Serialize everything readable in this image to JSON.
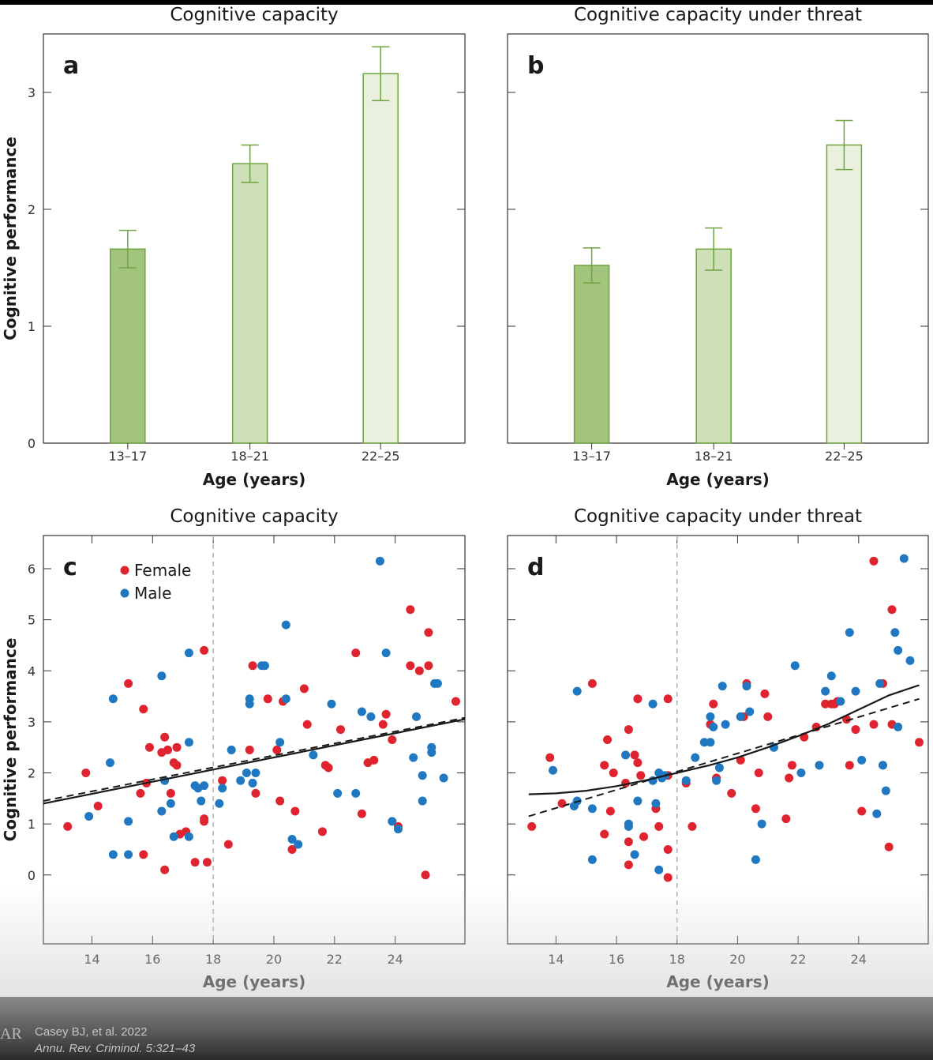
{
  "footer": {
    "logo": "AR",
    "citation_line1": "Casey BJ, et al. 2022",
    "citation_line2": "Annu. Rev. Criminol. 5:321–43"
  },
  "colors": {
    "bar_dark": "#a2c47c",
    "bar_mid": "#cfe0b8",
    "bar_light": "#e9f1de",
    "bar_edge": "#6fa33f",
    "female": "#e0242f",
    "male": "#1f78c1",
    "fit": "#1a1a1a",
    "divider": "#a6a6a6"
  },
  "chart_data": [
    {
      "type": "bar",
      "panel": "a",
      "title": "Cognitive capacity",
      "xlabel": "Age (years)",
      "ylabel": "Cognitive performance",
      "categories": [
        "13–17",
        "18–21",
        "22–25"
      ],
      "values": [
        1.66,
        2.39,
        3.16
      ],
      "errors": [
        0.16,
        0.16,
        0.23
      ],
      "ylim": [
        0,
        3.5
      ],
      "yticks": [
        0,
        1,
        2,
        3
      ],
      "ytick_labels": [
        "0",
        "1",
        "2",
        "3"
      ]
    },
    {
      "type": "bar",
      "panel": "b",
      "title": "Cognitive capacity under threat",
      "xlabel": "Age (years)",
      "ylabel": "",
      "categories": [
        "13–17",
        "18–21",
        "22–25"
      ],
      "values": [
        1.52,
        1.66,
        2.55
      ],
      "errors": [
        0.15,
        0.18,
        0.21
      ],
      "ylim": [
        0,
        3.5
      ],
      "yticks": [
        0,
        1,
        2,
        3
      ],
      "ytick_labels": [
        "",
        "",
        "",
        ""
      ]
    },
    {
      "type": "scatter",
      "panel": "c",
      "title": "Cognitive capacity",
      "xlabel": "Age (years)",
      "ylabel": "Cognitive performance",
      "xlim": [
        12.4,
        26.3
      ],
      "ylim": [
        -1.35,
        6.65
      ],
      "xticks": [
        14,
        16,
        18,
        20,
        22,
        24
      ],
      "xtick_labels": [
        "14",
        "16",
        "18",
        "20",
        "22",
        "24"
      ],
      "yticks": [
        0,
        1,
        2,
        3,
        4,
        5,
        6
      ],
      "ytick_labels": [
        "0",
        "1",
        "2",
        "3",
        "4",
        "5",
        "6"
      ],
      "divider_x": 18,
      "legend": {
        "position": "top-left",
        "entries": [
          "Female",
          "Male"
        ]
      },
      "fit_solid": {
        "x": [
          12.4,
          26.3
        ],
        "y": [
          1.4,
          3.05
        ]
      },
      "fit_dashed": {
        "x": [
          12.4,
          26.3
        ],
        "y": [
          1.45,
          3.08
        ]
      },
      "series": [
        {
          "name": "Female",
          "points": [
            [
              13.2,
              0.95
            ],
            [
              13.8,
              2.0
            ],
            [
              14.2,
              1.35
            ],
            [
              15.2,
              3.75
            ],
            [
              15.6,
              1.6
            ],
            [
              15.7,
              3.25
            ],
            [
              15.7,
              0.4
            ],
            [
              15.8,
              1.8
            ],
            [
              15.9,
              2.5
            ],
            [
              16.3,
              2.4
            ],
            [
              16.4,
              2.7
            ],
            [
              16.4,
              0.1
            ],
            [
              16.5,
              2.45
            ],
            [
              16.6,
              1.6
            ],
            [
              16.7,
              2.2
            ],
            [
              16.8,
              2.15
            ],
            [
              16.8,
              2.5
            ],
            [
              16.9,
              0.8
            ],
            [
              17.1,
              0.85
            ],
            [
              17.4,
              0.25
            ],
            [
              17.7,
              4.4
            ],
            [
              17.7,
              1.1
            ],
            [
              17.7,
              1.05
            ],
            [
              17.8,
              0.25
            ],
            [
              18.3,
              1.85
            ],
            [
              18.5,
              0.6
            ],
            [
              19.2,
              2.45
            ],
            [
              19.3,
              4.1
            ],
            [
              19.4,
              1.6
            ],
            [
              19.8,
              3.45
            ],
            [
              20.1,
              2.45
            ],
            [
              20.2,
              1.45
            ],
            [
              20.3,
              3.4
            ],
            [
              20.6,
              0.5
            ],
            [
              20.7,
              1.25
            ],
            [
              21.0,
              3.65
            ],
            [
              21.1,
              2.95
            ],
            [
              21.6,
              0.85
            ],
            [
              21.7,
              2.15
            ],
            [
              21.8,
              2.1
            ],
            [
              22.2,
              2.85
            ],
            [
              22.7,
              4.35
            ],
            [
              22.9,
              1.2
            ],
            [
              23.1,
              2.2
            ],
            [
              23.3,
              2.25
            ],
            [
              23.6,
              2.95
            ],
            [
              23.7,
              3.15
            ],
            [
              23.9,
              2.65
            ],
            [
              24.1,
              0.95
            ],
            [
              24.5,
              4.1
            ],
            [
              24.5,
              5.2
            ],
            [
              24.8,
              4.0
            ],
            [
              25.0,
              0.0
            ],
            [
              25.1,
              4.1
            ],
            [
              25.1,
              4.75
            ],
            [
              26.0,
              3.4
            ]
          ]
        },
        {
          "name": "Male",
          "points": [
            [
              13.9,
              1.15
            ],
            [
              14.6,
              2.2
            ],
            [
              14.7,
              3.45
            ],
            [
              14.7,
              0.4
            ],
            [
              15.2,
              1.05
            ],
            [
              15.2,
              0.4
            ],
            [
              16.3,
              3.9
            ],
            [
              16.3,
              1.25
            ],
            [
              16.4,
              1.85
            ],
            [
              16.6,
              1.4
            ],
            [
              16.7,
              0.75
            ],
            [
              17.2,
              2.6
            ],
            [
              17.2,
              4.35
            ],
            [
              17.2,
              0.75
            ],
            [
              17.4,
              1.75
            ],
            [
              17.5,
              1.7
            ],
            [
              17.6,
              1.45
            ],
            [
              17.7,
              1.75
            ],
            [
              18.2,
              1.4
            ],
            [
              18.3,
              1.7
            ],
            [
              18.6,
              2.45
            ],
            [
              18.9,
              1.85
            ],
            [
              19.1,
              2.0
            ],
            [
              19.2,
              3.45
            ],
            [
              19.2,
              3.35
            ],
            [
              19.3,
              1.8
            ],
            [
              19.4,
              2.0
            ],
            [
              19.6,
              4.1
            ],
            [
              19.7,
              4.1
            ],
            [
              20.2,
              2.6
            ],
            [
              20.4,
              3.45
            ],
            [
              20.4,
              4.9
            ],
            [
              20.6,
              0.7
            ],
            [
              20.8,
              0.6
            ],
            [
              21.3,
              2.35
            ],
            [
              21.9,
              3.35
            ],
            [
              22.1,
              1.6
            ],
            [
              22.7,
              1.6
            ],
            [
              22.9,
              3.2
            ],
            [
              23.2,
              3.1
            ],
            [
              23.5,
              6.15
            ],
            [
              23.7,
              4.35
            ],
            [
              23.9,
              1.05
            ],
            [
              24.1,
              0.9
            ],
            [
              24.6,
              2.3
            ],
            [
              24.7,
              3.1
            ],
            [
              24.9,
              1.95
            ],
            [
              24.9,
              1.45
            ],
            [
              25.2,
              2.4
            ],
            [
              25.2,
              2.5
            ],
            [
              25.3,
              3.75
            ],
            [
              25.4,
              3.75
            ],
            [
              25.6,
              1.9
            ]
          ]
        }
      ]
    },
    {
      "type": "scatter",
      "panel": "d",
      "title": "Cognitive capacity under threat",
      "xlabel": "Age (years)",
      "ylabel": "",
      "xlim": [
        12.4,
        26.3
      ],
      "ylim": [
        -1.35,
        6.65
      ],
      "xticks": [
        14,
        16,
        18,
        20,
        22,
        24
      ],
      "xtick_labels": [
        "14",
        "16",
        "18",
        "20",
        "22",
        "24"
      ],
      "yticks": [
        0,
        1,
        2,
        3,
        4,
        5,
        6
      ],
      "ytick_labels": [
        "",
        "",
        "",
        "",
        "",
        "",
        ""
      ],
      "divider_x": 18,
      "legend": null,
      "fit_solid": {
        "x": [
          13.1,
          14,
          15,
          16,
          17,
          18,
          19,
          20,
          21,
          22,
          23,
          24,
          25,
          26.0
        ],
        "y": [
          1.58,
          1.6,
          1.65,
          1.74,
          1.86,
          2.0,
          2.14,
          2.3,
          2.5,
          2.72,
          2.96,
          3.24,
          3.52,
          3.72
        ]
      },
      "fit_dashed": {
        "x": [
          13.1,
          26.0
        ],
        "y": [
          1.15,
          3.45
        ]
      },
      "series": [
        {
          "name": "Female",
          "points": [
            [
              13.2,
              0.95
            ],
            [
              13.8,
              2.3
            ],
            [
              14.2,
              1.4
            ],
            [
              15.2,
              3.75
            ],
            [
              15.6,
              0.8
            ],
            [
              15.6,
              2.15
            ],
            [
              15.7,
              2.65
            ],
            [
              15.8,
              1.25
            ],
            [
              15.9,
              2.0
            ],
            [
              16.3,
              1.8
            ],
            [
              16.4,
              2.85
            ],
            [
              16.4,
              0.65
            ],
            [
              16.4,
              0.2
            ],
            [
              16.6,
              2.35
            ],
            [
              16.7,
              2.2
            ],
            [
              16.7,
              3.45
            ],
            [
              16.8,
              1.95
            ],
            [
              16.9,
              0.75
            ],
            [
              17.3,
              1.3
            ],
            [
              17.4,
              0.95
            ],
            [
              17.7,
              3.45
            ],
            [
              17.7,
              1.95
            ],
            [
              17.7,
              0.5
            ],
            [
              17.7,
              -0.05
            ],
            [
              18.3,
              1.8
            ],
            [
              18.5,
              0.95
            ],
            [
              19.1,
              2.95
            ],
            [
              19.2,
              3.35
            ],
            [
              19.3,
              1.9
            ],
            [
              19.8,
              1.6
            ],
            [
              20.1,
              2.25
            ],
            [
              20.1,
              3.1
            ],
            [
              20.2,
              3.1
            ],
            [
              20.3,
              3.75
            ],
            [
              20.6,
              1.3
            ],
            [
              20.7,
              2.0
            ],
            [
              20.9,
              3.55
            ],
            [
              21.0,
              3.1
            ],
            [
              21.6,
              1.1
            ],
            [
              21.7,
              1.9
            ],
            [
              21.8,
              2.15
            ],
            [
              22.2,
              2.7
            ],
            [
              22.6,
              2.9
            ],
            [
              22.9,
              3.35
            ],
            [
              23.1,
              3.35
            ],
            [
              23.2,
              3.35
            ],
            [
              23.3,
              3.4
            ],
            [
              23.6,
              3.05
            ],
            [
              23.7,
              2.15
            ],
            [
              23.9,
              2.85
            ],
            [
              24.1,
              1.25
            ],
            [
              24.5,
              2.95
            ],
            [
              24.5,
              6.15
            ],
            [
              24.8,
              3.75
            ],
            [
              25.0,
              0.55
            ],
            [
              25.1,
              5.2
            ],
            [
              25.1,
              2.95
            ],
            [
              26.0,
              2.6
            ]
          ]
        },
        {
          "name": "Male",
          "points": [
            [
              13.9,
              2.05
            ],
            [
              14.6,
              1.35
            ],
            [
              14.7,
              3.6
            ],
            [
              14.7,
              1.45
            ],
            [
              15.2,
              1.3
            ],
            [
              15.2,
              0.3
            ],
            [
              16.3,
              2.35
            ],
            [
              16.4,
              1.0
            ],
            [
              16.4,
              0.95
            ],
            [
              16.6,
              0.4
            ],
            [
              16.7,
              1.45
            ],
            [
              17.2,
              1.85
            ],
            [
              17.2,
              3.35
            ],
            [
              17.3,
              1.4
            ],
            [
              17.4,
              0.1
            ],
            [
              17.4,
              2.0
            ],
            [
              17.5,
              1.9
            ],
            [
              17.6,
              1.95
            ],
            [
              18.3,
              1.85
            ],
            [
              18.6,
              2.3
            ],
            [
              18.9,
              2.6
            ],
            [
              19.1,
              2.6
            ],
            [
              19.1,
              3.1
            ],
            [
              19.2,
              2.9
            ],
            [
              19.3,
              1.85
            ],
            [
              19.4,
              2.1
            ],
            [
              19.5,
              3.7
            ],
            [
              19.6,
              2.95
            ],
            [
              20.1,
              3.1
            ],
            [
              20.3,
              3.7
            ],
            [
              20.4,
              3.2
            ],
            [
              20.6,
              0.3
            ],
            [
              20.8,
              1.0
            ],
            [
              21.2,
              2.5
            ],
            [
              21.9,
              4.1
            ],
            [
              22.1,
              2.0
            ],
            [
              22.7,
              2.15
            ],
            [
              22.9,
              3.6
            ],
            [
              23.1,
              3.9
            ],
            [
              23.4,
              3.4
            ],
            [
              23.7,
              4.75
            ],
            [
              23.9,
              3.6
            ],
            [
              24.1,
              2.25
            ],
            [
              24.6,
              1.2
            ],
            [
              24.7,
              3.75
            ],
            [
              24.8,
              2.15
            ],
            [
              24.9,
              1.65
            ],
            [
              25.2,
              4.75
            ],
            [
              25.3,
              2.9
            ],
            [
              25.3,
              4.4
            ],
            [
              25.5,
              6.2
            ],
            [
              25.7,
              4.2
            ]
          ]
        }
      ]
    }
  ]
}
